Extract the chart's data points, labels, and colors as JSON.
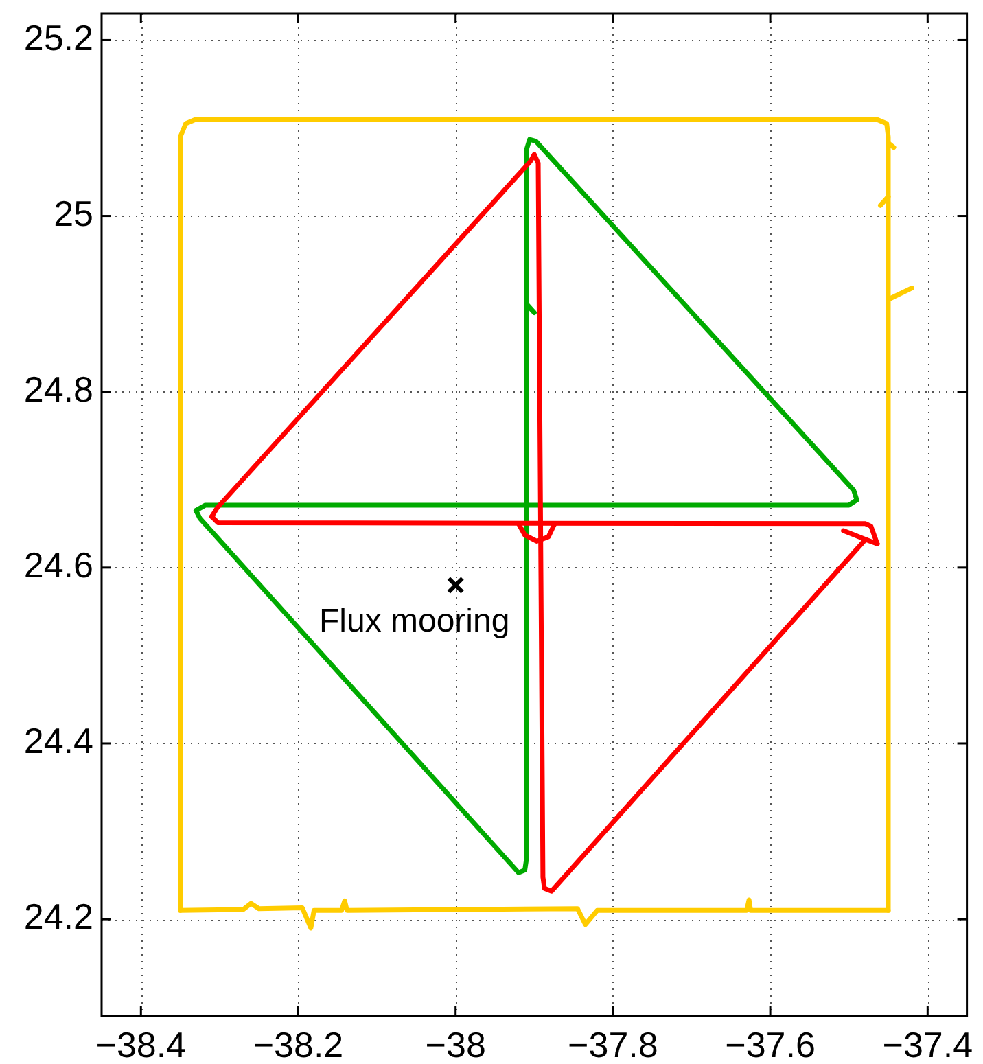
{
  "chart_data": {
    "type": "line",
    "xlim": [
      -38.45,
      -37.35
    ],
    "ylim": [
      24.09,
      25.23
    ],
    "xticks": [
      {
        "value": -38.4,
        "label": "−38.4"
      },
      {
        "value": -38.2,
        "label": "−38.2"
      },
      {
        "value": -38,
        "label": "−38"
      },
      {
        "value": -37.8,
        "label": "−37.8"
      },
      {
        "value": -37.6,
        "label": "−37.6"
      },
      {
        "value": -37.4,
        "label": "−37.4"
      }
    ],
    "yticks": [
      24.2,
      24.4,
      24.6,
      24.8,
      25,
      25.2
    ],
    "grid": true,
    "marker": "none",
    "line_style": "solid",
    "series": [
      {
        "color": "#ffcc00",
        "x": [
          -38.35,
          -38.35,
          -38.343,
          -38.33,
          -37.465,
          -37.452,
          -37.45,
          -37.45
        ],
        "values": [
          24.21,
          25.09,
          25.105,
          25.11,
          25.11,
          25.105,
          25.09,
          24.21
        ]
      },
      {
        "color": "#ffcc00",
        "x": [
          -38.35,
          -38.27,
          -38.26,
          -38.25,
          -38.195,
          -38.184,
          -38.18,
          -38.145,
          -38.141,
          -38.138,
          -37.845,
          -37.835,
          -37.82,
          -37.63,
          -37.627,
          -37.625,
          -37.45
        ],
        "values": [
          24.21,
          24.211,
          24.218,
          24.212,
          24.213,
          24.19,
          24.21,
          24.21,
          24.221,
          24.21,
          24.212,
          24.194,
          24.21,
          24.21,
          24.222,
          24.21,
          24.21
        ]
      },
      {
        "color": "#ffcc00",
        "x": [
          -37.45,
          -37.443
        ],
        "values": [
          25.083,
          25.078
        ]
      },
      {
        "color": "#ffcc00",
        "x": [
          -37.46,
          -37.45
        ],
        "values": [
          25.012,
          25.022
        ]
      },
      {
        "color": "#ffcc00",
        "x": [
          -37.45,
          -37.42
        ],
        "values": [
          24.905,
          24.918
        ]
      },
      {
        "color": "#ff0000",
        "x": [
          -38.31,
          -38.303,
          -37.905,
          -37.9,
          -37.895,
          -37.889,
          -37.887,
          -37.878,
          -37.479,
          -37.464
        ],
        "values": [
          24.658,
          24.668,
          25.062,
          25.07,
          25.06,
          24.248,
          24.235,
          24.232,
          24.632,
          24.627
        ]
      },
      {
        "color": "#ff0000",
        "x": [
          -38.31,
          -38.302,
          -37.479,
          -37.472,
          -37.464
        ],
        "values": [
          24.658,
          24.651,
          24.65,
          24.647,
          24.627
        ]
      },
      {
        "color": "#ff0000",
        "x": [
          -37.92,
          -37.912,
          -37.897,
          -37.882,
          -37.874
        ],
        "values": [
          24.65,
          24.637,
          24.63,
          24.635,
          24.65
        ]
      },
      {
        "color": "#ff0000",
        "x": [
          -37.507,
          -37.479
        ],
        "values": [
          24.642,
          24.632
        ]
      },
      {
        "color": "#00aa00",
        "x": [
          -38.33,
          -38.318,
          -37.5,
          -37.49
        ],
        "values": [
          24.665,
          24.671,
          24.671,
          24.677
        ]
      },
      {
        "color": "#00aa00",
        "x": [
          -38.33,
          -38.325,
          -37.92,
          -37.912,
          -37.91,
          -37.91,
          -37.906,
          -37.898,
          -37.494,
          -37.49
        ],
        "values": [
          24.665,
          24.656,
          24.253,
          24.256,
          24.268,
          25.075,
          25.087,
          25.085,
          24.688,
          24.677
        ]
      },
      {
        "color": "#00aa00",
        "x": [
          -37.91,
          -37.9
        ],
        "values": [
          24.9,
          24.89
        ]
      },
      {
        "name": "Flux mooring",
        "type": "scatter",
        "marker": "cross",
        "color": "#000000",
        "x": [
          -38
        ],
        "values": [
          24.58
        ]
      }
    ]
  }
}
